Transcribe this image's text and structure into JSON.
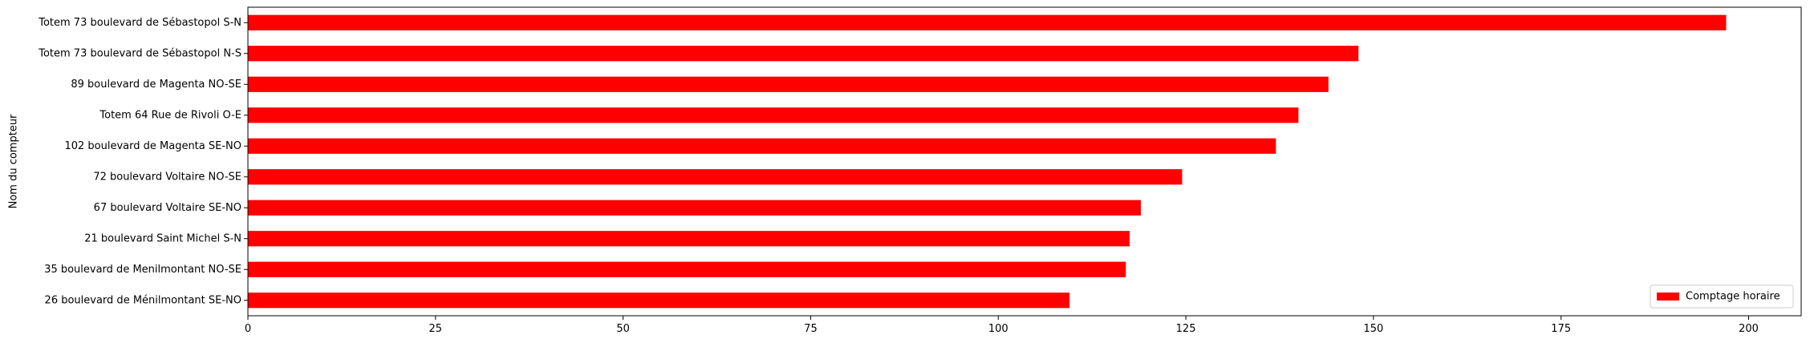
{
  "chart_data": {
    "type": "bar",
    "orientation": "horizontal",
    "ylabel": "Nom du compteur",
    "xlabel": "",
    "xlim": [
      0,
      207
    ],
    "xticks": [
      0,
      25,
      50,
      75,
      100,
      125,
      150,
      175,
      200
    ],
    "categories": [
      "Totem 73 boulevard de Sébastopol S-N",
      "Totem 73 boulevard de Sébastopol N-S",
      "89 boulevard de Magenta NO-SE",
      "Totem 64 Rue de Rivoli O-E",
      "102 boulevard de Magenta SE-NO",
      "72 boulevard Voltaire NO-SE",
      "67 boulevard Voltaire SE-NO",
      "21 boulevard Saint Michel S-N",
      "35 boulevard de Menilmontant NO-SE",
      "26 boulevard de Ménilmontant SE-NO"
    ],
    "series": [
      {
        "name": "Comptage horaire",
        "color": "#ff0000",
        "values": [
          197,
          148,
          144,
          140,
          137,
          124.5,
          119,
          117.5,
          117,
          109.5
        ]
      }
    ],
    "legend": {
      "position": "bottom-right"
    },
    "grid": false
  }
}
